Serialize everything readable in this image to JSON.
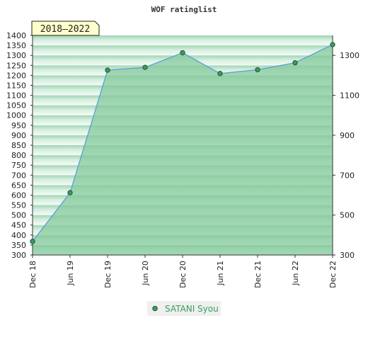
{
  "chart_data": {
    "type": "area",
    "title": "WOF ratinglist",
    "period_badge": "2018–2022",
    "x": [
      "Dec 18",
      "Jun 19",
      "Dec 19",
      "Jun 20",
      "Dec 20",
      "Jun 21",
      "Dec 21",
      "Jun 22",
      "Dec 22"
    ],
    "series": [
      {
        "name": "SATANI Syou",
        "values": [
          368,
          612,
          1226,
          1240,
          1313,
          1209,
          1228,
          1263,
          1354
        ]
      }
    ],
    "ylim": [
      300,
      1400
    ],
    "left_ticks": [
      1400,
      1350,
      1300,
      1250,
      1200,
      1150,
      1100,
      1050,
      1000,
      950,
      900,
      850,
      800,
      750,
      700,
      650,
      600,
      550,
      500,
      450,
      400,
      350,
      300
    ],
    "right_ticks": [
      1300,
      1100,
      900,
      700,
      500,
      300
    ],
    "grid": true,
    "legend_position": "bottom-center",
    "colors": {
      "area": "#83c99b",
      "line": "#5b9fd4",
      "marker": "#3a9a5c",
      "legend_text": "#3c9d5a",
      "badge_bg": "#ffffcc"
    }
  }
}
